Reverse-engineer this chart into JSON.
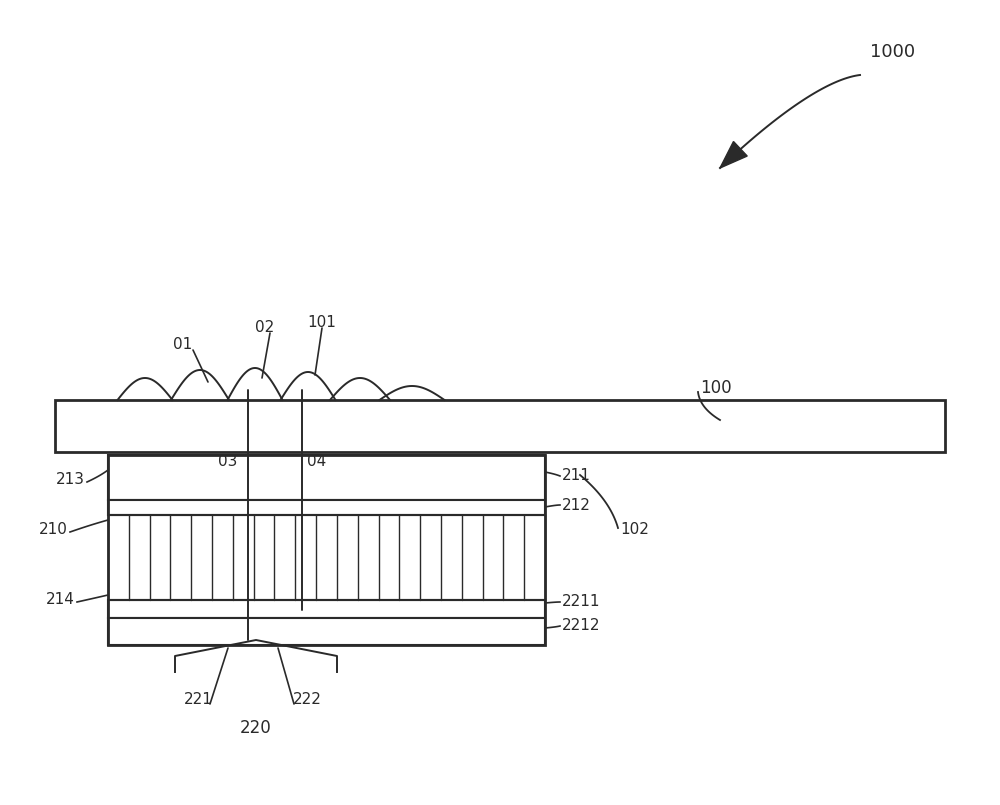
{
  "bg_color": "#ffffff",
  "line_color": "#2a2a2a",
  "fig_width": 10.0,
  "fig_height": 8.05,
  "dpi": 100,
  "labels": {
    "1000": "1000",
    "100": "100",
    "102": "102",
    "01": "01",
    "02": "02",
    "101": "101",
    "03": "03",
    "04": "04",
    "210": "210",
    "211": "211",
    "212": "212",
    "213": "213",
    "214": "214",
    "220": "220",
    "221": "221",
    "222": "222",
    "2211": "2211",
    "2212": "2212"
  }
}
